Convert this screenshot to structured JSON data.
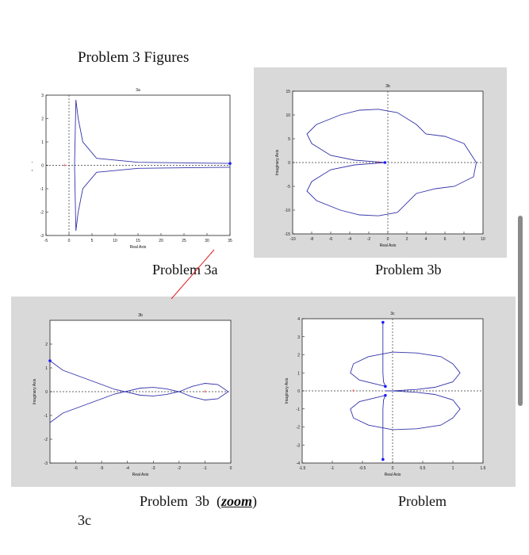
{
  "heading": "Problem 3 Figures",
  "captions": {
    "fig_a": "Problem 3a",
    "fig_b": "Problem 3b",
    "fig_b_zoom_prefix": "Problem  3b  (",
    "fig_b_zoom_word": "zoom",
    "fig_b_zoom_suffix": ")",
    "fig_c": "Problem",
    "fig_c_cont": "3c"
  },
  "colors": {
    "curve": "#3333aa",
    "arrow": "#1a1aff",
    "marker": "#ff3333",
    "panel": "#d9d9d9",
    "annotation": "#e02020"
  },
  "chart_data": [
    {
      "type": "line",
      "title": "3a",
      "xlabel": "Real Axis",
      "ylabel": "Imaginary Axis",
      "xlim": [
        -5,
        35
      ],
      "ylim": [
        -3,
        3
      ],
      "xticks": [
        "-5",
        "0",
        "5",
        "10",
        "15",
        "20",
        "25",
        "30",
        "35"
      ],
      "yticks": [
        "3",
        "2",
        "1",
        "0",
        "-1",
        "-2",
        "-3"
      ],
      "series": [
        {
          "x": [
            35,
            15,
            6,
            3,
            2,
            1.5,
            1.2,
            1.5,
            2,
            3,
            6,
            15,
            35
          ],
          "y": [
            0.08,
            0.13,
            0.3,
            1,
            2,
            2.8,
            0,
            -2.8,
            -2,
            -1,
            -0.3,
            -0.13,
            -0.08
          ]
        }
      ],
      "markers": [
        {
          "x": -1,
          "y": 0
        }
      ]
    },
    {
      "type": "line",
      "title": "3b",
      "xlabel": "Real Axis",
      "ylabel": "Imaginary Axis",
      "xlim": [
        -10,
        10
      ],
      "ylim": [
        -15,
        15
      ],
      "xticks": [
        "-10",
        "-8",
        "-6",
        "-4",
        "-2",
        "0",
        "2",
        "4",
        "6",
        "8",
        "10"
      ],
      "yticks": [
        "15",
        "10",
        "5",
        "0",
        "-5",
        "-10",
        "-15"
      ],
      "series": [
        {
          "x": [
            -0.3,
            -1.5,
            -3.5,
            -6,
            -8,
            -8.5,
            -7.5,
            -5,
            -3,
            -1,
            1,
            3,
            4,
            6,
            8,
            9.3,
            9,
            7,
            5,
            3,
            1,
            -1,
            -3,
            -5,
            -7.5,
            -8.5,
            -8,
            -6,
            -3.5,
            -1.5,
            -0.3
          ],
          "y": [
            0,
            0.2,
            0.5,
            1.5,
            4,
            6,
            8,
            10,
            11,
            11.2,
            10.5,
            8,
            6,
            5.5,
            4,
            0,
            -3,
            -5,
            -5.5,
            -6.5,
            -10.5,
            -11.2,
            -11,
            -10,
            -8,
            -6,
            -4,
            -1.5,
            -0.5,
            -0.2,
            0
          ]
        }
      ],
      "markers": [
        {
          "x": -1,
          "y": 0
        }
      ]
    },
    {
      "type": "line",
      "title": "3b",
      "xlabel": "Real Axis",
      "ylabel": "Imaginary Axis",
      "xlim": [
        -7,
        0
      ],
      "ylim": [
        -3,
        3
      ],
      "xticks": [
        "-6",
        "-5",
        "-4",
        "-3",
        "-2",
        "-1",
        "0"
      ],
      "yticks": [
        "2",
        "1",
        "0",
        "-1",
        "-2",
        "-3"
      ],
      "series": [
        {
          "x": [
            -7,
            -6.5,
            -5.5,
            -4.5,
            -3.5,
            -3,
            -2.5,
            -2,
            -1.5,
            -1,
            -0.5,
            -0.1,
            -0.5,
            -1,
            -1.5,
            -2,
            -2.5,
            -3,
            -3.5,
            -4.5,
            -5.5,
            -6.5,
            -7
          ],
          "y": [
            1.3,
            0.9,
            0.5,
            0.1,
            -0.15,
            -0.18,
            -0.12,
            0,
            0.22,
            0.35,
            0.3,
            0,
            -0.3,
            -0.35,
            -0.22,
            0,
            0.12,
            0.18,
            0.15,
            -0.1,
            -0.5,
            -0.9,
            -1.3
          ]
        }
      ],
      "markers": [
        {
          "x": -1,
          "y": 0
        }
      ]
    },
    {
      "type": "line",
      "title": "3c",
      "xlabel": "Real Axis",
      "ylabel": "Imaginary Axis",
      "xlim": [
        -1.5,
        1.5
      ],
      "ylim": [
        -4,
        4
      ],
      "xticks": [
        "-1.5",
        "-1",
        "-0.5",
        "0",
        "0.5",
        "1",
        "1.5"
      ],
      "yticks": [
        "4",
        "3",
        "2",
        "1",
        "0",
        "-1",
        "-2",
        "-3",
        "-4"
      ],
      "series": [
        {
          "x": [
            -0.16,
            -0.16,
            -0.15,
            -0.12
          ],
          "y": [
            3.8,
            1,
            0.5,
            0.25
          ]
        },
        {
          "x": [
            -0.12,
            -0.55,
            -0.7,
            -0.65,
            -0.4,
            0,
            0.4,
            0.8,
            1.0,
            1.12,
            1.0,
            0.7,
            0.4,
            0,
            -0.12
          ],
          "y": [
            0.25,
            0.6,
            1,
            1.5,
            1.9,
            2.15,
            2.1,
            1.9,
            1.5,
            1,
            0.5,
            0.2,
            0.08,
            0,
            0
          ]
        },
        {
          "x": [
            -0.12,
            -0.55,
            -0.7,
            -0.65,
            -0.4,
            0,
            0.4,
            0.8,
            1.0,
            1.12,
            1.0,
            0.7,
            0.4,
            0,
            -0.12
          ],
          "y": [
            -0.25,
            -0.6,
            -1,
            -1.5,
            -1.9,
            -2.15,
            -2.1,
            -1.9,
            -1.5,
            -1,
            -0.5,
            -0.2,
            -0.08,
            0,
            0
          ]
        },
        {
          "x": [
            -0.16,
            -0.16,
            -0.15,
            -0.12
          ],
          "y": [
            -3.8,
            -1,
            -0.5,
            -0.25
          ]
        }
      ],
      "markers": [
        {
          "x": -0.65,
          "y": 0
        }
      ]
    }
  ]
}
